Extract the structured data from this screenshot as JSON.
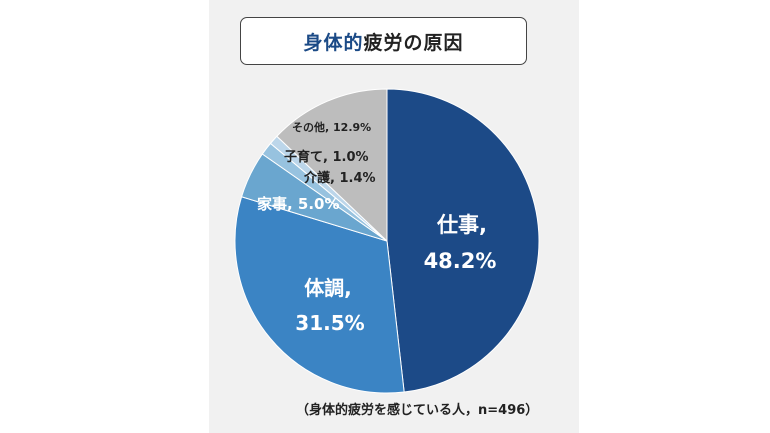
{
  "title": {
    "accent": "身体的",
    "rest": "疲労の原因"
  },
  "note": "（身体的疲労を感じている人，n=496）",
  "chart_data": {
    "type": "pie",
    "title": "身体的疲労の原因",
    "slices": [
      {
        "label": "仕事",
        "value": 48.2,
        "value_label": "48.2%",
        "color": "#1c4a87"
      },
      {
        "label": "体調",
        "value": 31.5,
        "value_label": "31.5%",
        "color": "#3b84c4"
      },
      {
        "label": "家事",
        "value": 5.0,
        "value_label": "5.0%",
        "color": "#6aa6cf"
      },
      {
        "label": "介護",
        "value": 1.4,
        "value_label": "1.4%",
        "color": "#97c2df"
      },
      {
        "label": "子育て",
        "value": 1.0,
        "value_label": "1.0%",
        "color": "#bcd6ea"
      },
      {
        "label": "その他",
        "value": 12.9,
        "value_label": "12.9%",
        "color": "#bdbdbd"
      }
    ],
    "labels": [
      {
        "text": "仕事,",
        "sub": "48.2%"
      },
      {
        "text": "体調,",
        "sub": "31.5%"
      },
      {
        "text": "家事, 5.0%"
      },
      {
        "text": "介護, 1.4%"
      },
      {
        "text": "子育て, 1.0%"
      },
      {
        "text": "その他, 12.9%"
      }
    ]
  }
}
